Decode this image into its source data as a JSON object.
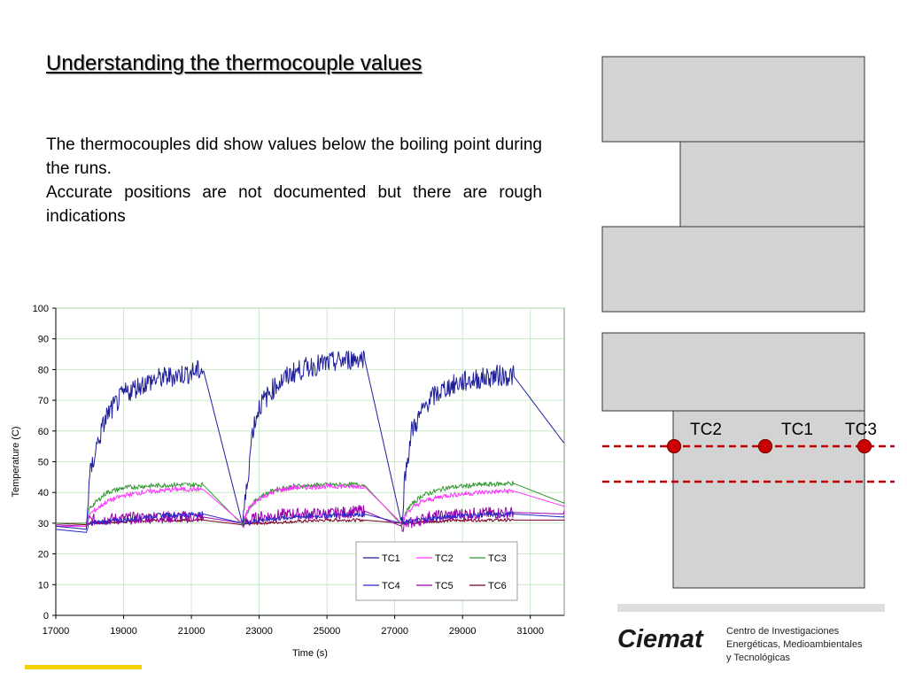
{
  "slide": {
    "title": "Understanding the thermocouple values",
    "paragraphs": [
      "The thermocouples did show values below the boiling point during the runs.",
      "Accurate positions are not documented but there are rough indications"
    ]
  },
  "diagram": {
    "labels": [
      "TC2",
      "TC1",
      "TC3"
    ],
    "block_color": "#d3d3d3",
    "line_color": "#c00000"
  },
  "footer": {
    "logo": "Ciemat",
    "org_lines": [
      "Centro de Investigaciones",
      "Energéticas, Medioambientales",
      "y  Tecnológicas"
    ]
  },
  "chart_data": {
    "type": "line",
    "xlabel": "Time (s)",
    "ylabel": "Temperature (C)",
    "xlim": [
      17000,
      32000
    ],
    "ylim": [
      0,
      100
    ],
    "xticks": [
      17000,
      19000,
      21000,
      23000,
      25000,
      27000,
      29000,
      31000
    ],
    "yticks": [
      0,
      10,
      20,
      30,
      40,
      50,
      60,
      70,
      80,
      90,
      100
    ],
    "grid": true,
    "legend_position": "bottom-right",
    "series": [
      {
        "name": "TC1",
        "color": "#1f1f9a",
        "noise": 3.5,
        "points": [
          [
            17000,
            29
          ],
          [
            17500,
            28.5
          ],
          [
            17900,
            28
          ],
          [
            18000,
            45
          ],
          [
            18200,
            55
          ],
          [
            18500,
            65
          ],
          [
            19000,
            72
          ],
          [
            19500,
            75
          ],
          [
            20000,
            77
          ],
          [
            20500,
            78
          ],
          [
            21000,
            79
          ],
          [
            21350,
            80
          ],
          [
            22500,
            30
          ],
          [
            22600,
            38
          ],
          [
            22800,
            60
          ],
          [
            23000,
            68
          ],
          [
            23500,
            75
          ],
          [
            24000,
            79
          ],
          [
            24500,
            81
          ],
          [
            25000,
            82
          ],
          [
            25500,
            83
          ],
          [
            26100,
            84
          ],
          [
            27200,
            30
          ],
          [
            27300,
            45
          ],
          [
            27500,
            60
          ],
          [
            28000,
            70
          ],
          [
            28500,
            74
          ],
          [
            29000,
            76
          ],
          [
            29500,
            77
          ],
          [
            30000,
            78
          ],
          [
            30500,
            78
          ],
          [
            32000,
            56
          ]
        ]
      },
      {
        "name": "TC2",
        "color": "#ff33ff",
        "noise": 0.8,
        "points": [
          [
            17000,
            29
          ],
          [
            17900,
            29
          ],
          [
            18000,
            33
          ],
          [
            18500,
            37
          ],
          [
            19000,
            39
          ],
          [
            19500,
            40
          ],
          [
            20000,
            40.5
          ],
          [
            20500,
            41
          ],
          [
            21350,
            41
          ],
          [
            22500,
            30
          ],
          [
            22700,
            35
          ],
          [
            23000,
            38
          ],
          [
            23500,
            40.5
          ],
          [
            24000,
            41.5
          ],
          [
            25000,
            42
          ],
          [
            26100,
            42
          ],
          [
            27200,
            30
          ],
          [
            27400,
            34
          ],
          [
            27800,
            37
          ],
          [
            28500,
            39
          ],
          [
            29500,
            40
          ],
          [
            30500,
            40.5
          ],
          [
            32000,
            35.5
          ]
        ]
      },
      {
        "name": "TC3",
        "color": "#339933",
        "noise": 0.8,
        "points": [
          [
            17000,
            30
          ],
          [
            17900,
            30
          ],
          [
            18000,
            35
          ],
          [
            18500,
            40
          ],
          [
            19000,
            41.5
          ],
          [
            19500,
            42
          ],
          [
            20500,
            42.5
          ],
          [
            21350,
            42.5
          ],
          [
            22500,
            29.5
          ],
          [
            22700,
            35
          ],
          [
            23000,
            38.5
          ],
          [
            23500,
            41
          ],
          [
            24000,
            42
          ],
          [
            25000,
            42.5
          ],
          [
            26100,
            42.5
          ],
          [
            27200,
            29.5
          ],
          [
            27400,
            35
          ],
          [
            27800,
            39
          ],
          [
            28500,
            41.5
          ],
          [
            29500,
            42.5
          ],
          [
            30500,
            43
          ],
          [
            32000,
            36.5
          ]
        ]
      },
      {
        "name": "TC4",
        "color": "#2828c8",
        "noise": 0.8,
        "points": [
          [
            17000,
            28
          ],
          [
            17900,
            27
          ],
          [
            18000,
            30
          ],
          [
            19000,
            31
          ],
          [
            20000,
            32.5
          ],
          [
            21350,
            33
          ],
          [
            22500,
            30
          ],
          [
            23000,
            31
          ],
          [
            24000,
            32
          ],
          [
            25000,
            32.5
          ],
          [
            26100,
            33
          ],
          [
            27200,
            30
          ],
          [
            28000,
            31.5
          ],
          [
            29000,
            32.5
          ],
          [
            30500,
            33
          ],
          [
            32000,
            32
          ]
        ]
      },
      {
        "name": "TC5",
        "color": "#9900aa",
        "noise": 2.0,
        "points": [
          [
            17000,
            29.5
          ],
          [
            17900,
            29
          ],
          [
            18000,
            31
          ],
          [
            19000,
            31.5
          ],
          [
            20000,
            32
          ],
          [
            21350,
            32
          ],
          [
            22500,
            30
          ],
          [
            23000,
            32
          ],
          [
            24000,
            33
          ],
          [
            25000,
            33
          ],
          [
            26100,
            34
          ],
          [
            27200,
            29
          ],
          [
            28000,
            32
          ],
          [
            29000,
            33
          ],
          [
            30500,
            33.5
          ],
          [
            32000,
            33
          ]
        ]
      },
      {
        "name": "TC6",
        "color": "#7a0022",
        "noise": 0.5,
        "points": [
          [
            17000,
            30
          ],
          [
            17900,
            29.5
          ],
          [
            18000,
            30
          ],
          [
            19000,
            30.5
          ],
          [
            20000,
            31
          ],
          [
            21350,
            31
          ],
          [
            22500,
            29.5
          ],
          [
            23000,
            30
          ],
          [
            24000,
            30.5
          ],
          [
            25000,
            31
          ],
          [
            26100,
            31
          ],
          [
            27200,
            30
          ],
          [
            28000,
            30.5
          ],
          [
            29000,
            31
          ],
          [
            30500,
            31
          ],
          [
            32000,
            31
          ]
        ]
      }
    ]
  }
}
